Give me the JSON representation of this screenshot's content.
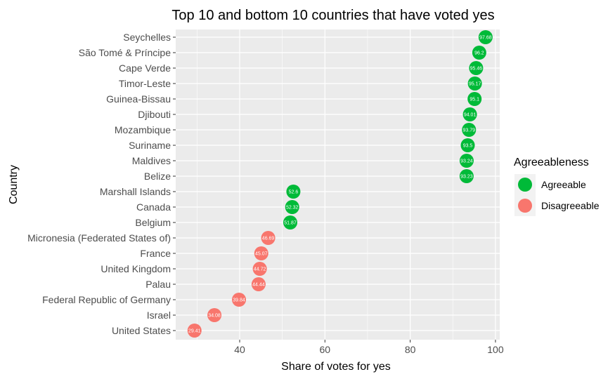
{
  "chart_data": {
    "type": "scatter",
    "title": "Top 10 and bottom 10 countries that have voted yes",
    "xlabel": "Share of votes for yes",
    "ylabel": "Country",
    "xlim": [
      25,
      101
    ],
    "x_ticks": [
      40,
      60,
      80,
      100
    ],
    "grid": true,
    "legend_title": "Agreeableness",
    "legend_position": "right",
    "series": [
      {
        "name": "Agreeable",
        "color": "#00BA38"
      },
      {
        "name": "Disagreeable",
        "color": "#F8766D"
      }
    ],
    "points": [
      {
        "country": "Seychelles",
        "value": 97.68,
        "label": "97.68",
        "group": "Agreeable"
      },
      {
        "country": "São Tomé & Príncipe",
        "value": 96.2,
        "label": "96.2",
        "group": "Agreeable"
      },
      {
        "country": "Cape Verde",
        "value": 95.46,
        "label": "95.46",
        "group": "Agreeable"
      },
      {
        "country": "Timor-Leste",
        "value": 95.17,
        "label": "95.17",
        "group": "Agreeable"
      },
      {
        "country": "Guinea-Bissau",
        "value": 95.1,
        "label": "95.1",
        "group": "Agreeable"
      },
      {
        "country": "Djibouti",
        "value": 94.01,
        "label": "94.01",
        "group": "Agreeable"
      },
      {
        "country": "Mozambique",
        "value": 93.79,
        "label": "93.79",
        "group": "Agreeable"
      },
      {
        "country": "Suriname",
        "value": 93.5,
        "label": "93.5",
        "group": "Agreeable"
      },
      {
        "country": "Maldives",
        "value": 93.24,
        "label": "93.24",
        "group": "Agreeable"
      },
      {
        "country": "Belize",
        "value": 93.23,
        "label": "93.23",
        "group": "Agreeable"
      },
      {
        "country": "Marshall Islands",
        "value": 52.6,
        "label": "52.6",
        "group": "Agreeable"
      },
      {
        "country": "Canada",
        "value": 52.32,
        "label": "52.32",
        "group": "Agreeable"
      },
      {
        "country": "Belgium",
        "value": 51.87,
        "label": "51.87",
        "group": "Agreeable"
      },
      {
        "country": "Micronesia (Federated States of)",
        "value": 46.69,
        "label": "46.69",
        "group": "Disagreeable"
      },
      {
        "country": "France",
        "value": 45.07,
        "label": "45.07",
        "group": "Disagreeable"
      },
      {
        "country": "United Kingdom",
        "value": 44.72,
        "label": "44.72",
        "group": "Disagreeable"
      },
      {
        "country": "Palau",
        "value": 44.44,
        "label": "44.44",
        "group": "Disagreeable"
      },
      {
        "country": "Federal Republic of Germany",
        "value": 39.84,
        "label": "39.84",
        "group": "Disagreeable"
      },
      {
        "country": "Israel",
        "value": 34.08,
        "label": "34.08",
        "group": "Disagreeable"
      },
      {
        "country": "United States",
        "value": 29.41,
        "label": "29.41",
        "group": "Disagreeable"
      }
    ]
  }
}
